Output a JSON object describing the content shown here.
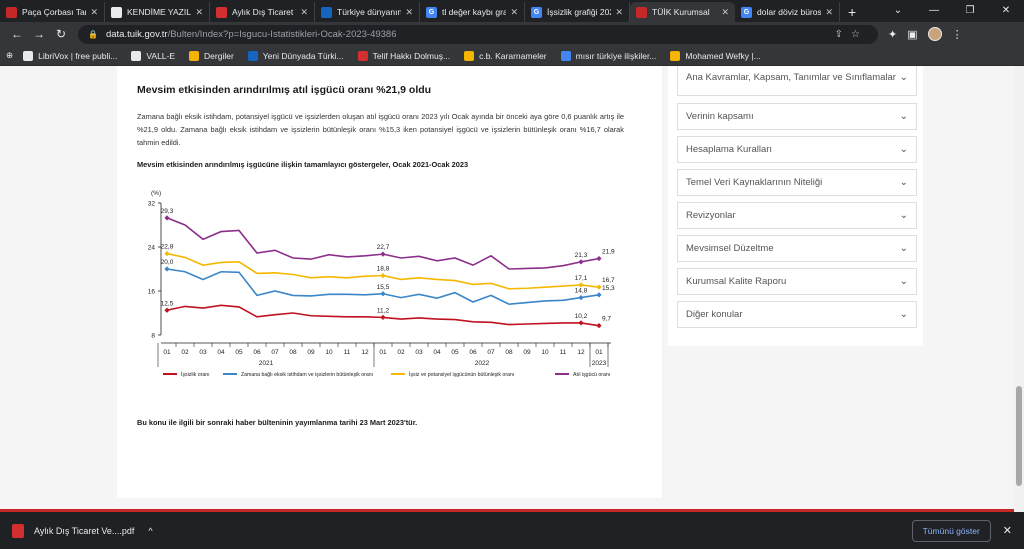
{
  "browser": {
    "tabs": [
      {
        "label": "Paça Çorbası Tarif",
        "color": "#c62828",
        "glyph": "",
        "active": false
      },
      {
        "label": "KENDİME YAZILA",
        "color": "#e8eaed",
        "glyph": "",
        "active": false
      },
      {
        "label": "Aylık Dış Ticaret V",
        "color": "#d32f2f",
        "glyph": "",
        "active": false
      },
      {
        "label": "Türkiye dünyanın",
        "color": "#1565c0",
        "glyph": "",
        "active": false
      },
      {
        "label": "tl değer kaybı gra",
        "color": "#4285f4",
        "glyph": "G",
        "active": false
      },
      {
        "label": "İşsizlik grafiği 202",
        "color": "#4285f4",
        "glyph": "G",
        "active": false
      },
      {
        "label": "TÜİK Kurumsal",
        "color": "#c62828",
        "glyph": "",
        "active": true
      },
      {
        "label": "dolar döviz bürosu",
        "color": "#4285f4",
        "glyph": "G",
        "active": false
      }
    ],
    "url_host": "data.tuik.gov.tr",
    "url_path": "/Bulten/Index?p=Isgucu-Istatistikleri-Ocak-2023-49386",
    "bookmarks": [
      {
        "label": "LibriVox | free publi...",
        "color": "#e8eaed"
      },
      {
        "label": "VALL-E",
        "color": "#e8eaed"
      },
      {
        "label": "Dergiler",
        "color": "#f4b400"
      },
      {
        "label": "Yeni Dünyada Türki...",
        "color": "#1565c0"
      },
      {
        "label": "Telif Hakkı Dolmuş...",
        "color": "#d32f2f"
      },
      {
        "label": "c.b. Kararnameler",
        "color": "#f4b400"
      },
      {
        "label": "mısır türkiye ilişkiler...",
        "color": "#4285f4"
      },
      {
        "label": "Mohamed Wefky |...",
        "color": "#f4b400"
      }
    ]
  },
  "article": {
    "heading": "Mevsim etkisinden arındırılmış atıl işgücü oranı %21,9 oldu",
    "paragraph": "Zamana bağlı eksik istihdam, potansiyel işgücü ve işsizlerden oluşan atıl işgücü oranı 2023 yılı Ocak ayında bir önceki aya göre 0,6 puanlık artış ile %21,9 oldu. Zamana bağlı eksik istihdam ve işsizlerin bütünleşik oranı %15,3 iken potansiyel işgücü ve işsizlerin bütünleşik oranı %16,7 olarak tahmin edildi.",
    "figure_title": "Mevsim etkisinden arındırılmış işgücüne ilişkin tamamlayıcı göstergeler, Ocak 2021-Ocak 2023",
    "footnote": "Bu konu ile ilgili bir sonraki haber bülteninin yayımlanma tarihi 23 Mart 2023'tür."
  },
  "chart_data": {
    "type": "line",
    "ylabel": "(%)",
    "ylim": [
      8,
      32
    ],
    "yticks": [
      8,
      16,
      24,
      32
    ],
    "x": [
      "01",
      "02",
      "03",
      "04",
      "05",
      "06",
      "07",
      "08",
      "09",
      "10",
      "11",
      "12",
      "01",
      "02",
      "03",
      "04",
      "05",
      "06",
      "07",
      "08",
      "09",
      "10",
      "11",
      "12",
      "01"
    ],
    "year_labels": [
      "2021",
      "2022",
      "2023"
    ],
    "series": [
      {
        "name": "İşsizlik oranı",
        "color": "#c0111f",
        "values": [
          12.5,
          13.2,
          12.9,
          13.4,
          13.1,
          11.3,
          11.7,
          12.0,
          11.5,
          11.4,
          11.3,
          11.3,
          11.2,
          10.9,
          11.1,
          10.9,
          10.8,
          10.4,
          10.3,
          9.9,
          10.0,
          10.1,
          10.2,
          10.2,
          9.7
        ],
        "labels": {
          "0": "12,5",
          "12": "11,2",
          "23": "10,2",
          "24": "9,7"
        }
      },
      {
        "name": "Zamana bağlı eksik istihdam ve işsizlerin bütünleşik oranı",
        "color": "#3a86c8",
        "values": [
          20.0,
          19.5,
          18.1,
          19.5,
          19.4,
          15.2,
          16.0,
          15.2,
          15.1,
          15.4,
          15.4,
          15.3,
          15.5,
          14.8,
          15.4,
          14.7,
          15.7,
          14.0,
          15.2,
          13.6,
          13.9,
          14.2,
          14.3,
          14.8,
          15.3
        ],
        "labels": {
          "0": "20,0",
          "12": "15,5",
          "23": "14,8",
          "24": "15,3"
        }
      },
      {
        "name": "İşsiz ve potansiyel işgücünün bütünleşik oranı",
        "color": "#f5b800",
        "values": [
          22.8,
          22.1,
          20.7,
          21.2,
          21.3,
          19.2,
          19.3,
          19.0,
          18.4,
          18.6,
          18.4,
          18.7,
          18.8,
          18.1,
          18.4,
          18.1,
          17.9,
          17.2,
          17.4,
          16.4,
          16.5,
          16.7,
          16.9,
          17.1,
          16.7
        ],
        "labels": {
          "0": "22,8",
          "12": "18,8",
          "23": "17,1",
          "24": "16,7"
        }
      },
      {
        "name": "Atıl işgücü oranı",
        "color": "#8b2f8b",
        "values": [
          29.3,
          28.0,
          25.4,
          26.8,
          27.0,
          22.9,
          23.4,
          22.0,
          21.8,
          22.6,
          22.2,
          22.4,
          22.7,
          22.0,
          22.3,
          21.5,
          22.0,
          20.7,
          22.4,
          20.0,
          20.1,
          20.2,
          20.6,
          21.3,
          21.9
        ],
        "labels": {
          "0": "29,3",
          "12": "22,7",
          "23": "21,3",
          "24": "21,9"
        }
      }
    ]
  },
  "sidebar": {
    "items": [
      "Ana Kavramlar, Kapsam, Tanımlar ve Sınıflamalar",
      "Verinin kapsamı",
      "Hesaplama Kuralları",
      "Temel Veri Kaynaklarının Niteliği",
      "Revizyonlar",
      "Mevsimsel Düzeltme",
      "Kurumsal Kalite Raporu",
      "Diğer konular"
    ]
  },
  "downloads": {
    "file": "Aylık Dış Ticaret Ve....pdf",
    "show_all": "Tümünü göster"
  }
}
